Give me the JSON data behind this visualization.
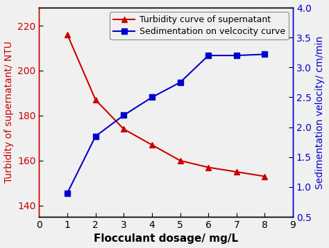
{
  "x": [
    1,
    2,
    3,
    4,
    5,
    6,
    7,
    8
  ],
  "turbidity": [
    216,
    187,
    174,
    167,
    160,
    157,
    155,
    153
  ],
  "sedimentation": [
    0.9,
    1.85,
    2.2,
    2.5,
    2.75,
    3.2,
    3.2,
    3.22
  ],
  "turbidity_color": "#cc0000",
  "sed_color": "#0000cc",
  "xlabel": "Flocculant dosage/ mg/L",
  "ylabel_left": "Turbidity of supernatant/ NTU",
  "ylabel_right": "Sedimentation velocity/ cm/min",
  "legend_turbidity": "Turbidity curve of supernatant",
  "legend_sed": "Sedimentation on velcocity curve",
  "xlim": [
    0,
    9
  ],
  "ylim_left": [
    135,
    228
  ],
  "ylim_right": [
    0.5,
    4.0
  ],
  "yticks_left": [
    140,
    160,
    180,
    200,
    220
  ],
  "yticks_right": [
    0.5,
    1.0,
    1.5,
    2.0,
    2.5,
    3.0,
    3.5,
    4.0
  ],
  "xticks": [
    0,
    1,
    2,
    3,
    4,
    5,
    6,
    7,
    8,
    9
  ],
  "background_color": "#f0f0f0",
  "plot_bg_color": "#f0f0f0",
  "xlabel_fontsize": 11,
  "ylabel_fontsize": 10,
  "tick_fontsize": 10,
  "legend_fontsize": 9
}
